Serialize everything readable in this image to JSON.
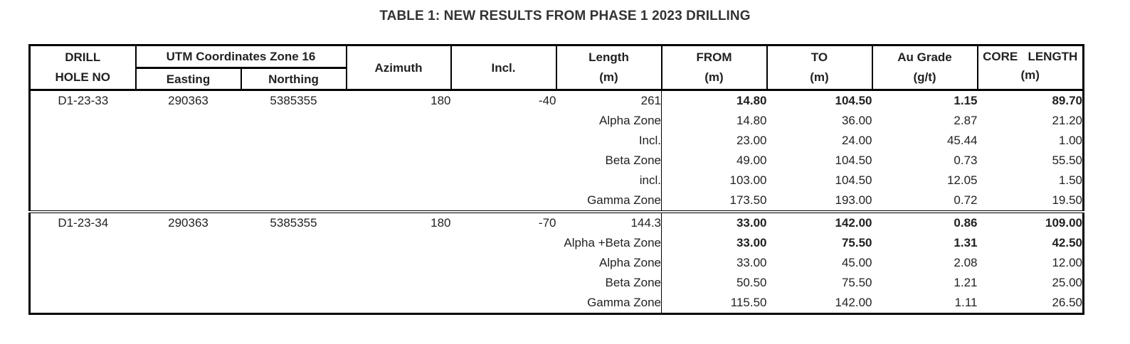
{
  "title": "TABLE 1: NEW RESULTS FROM PHASE 1 2023 DRILLING",
  "headers": {
    "drill_line1": "DRILL",
    "drill_line2": "HOLE NO",
    "utm_group": "UTM Coordinates Zone 16",
    "easting": "Easting",
    "northing": "Northing",
    "azimuth": "Azimuth",
    "incl": "Incl.",
    "length_line1": "Length",
    "length_line2": "(m)",
    "from_line1": "FROM",
    "from_line2": "(m)",
    "to_line1": "TO",
    "to_line2": "(m)",
    "au_line1": "Au Grade",
    "au_line2": "(g/t)",
    "core_line1": "CORE   LENGTH",
    "core_line2": "(m)"
  },
  "holes": [
    {
      "hole_no": "D1-23-33",
      "easting": "290363",
      "northing": "5385355",
      "azimuth": "180",
      "incl": "-40",
      "length": "261",
      "rows": [
        {
          "label": "",
          "from": "14.80",
          "to": "104.50",
          "au": "1.15",
          "core": "89.70",
          "bold": true
        },
        {
          "label": "Alpha Zone",
          "from": "14.80",
          "to": "36.00",
          "au": "2.87",
          "core": "21.20",
          "bold": false
        },
        {
          "label": "Incl.",
          "from": "23.00",
          "to": "24.00",
          "au": "45.44",
          "core": "1.00",
          "bold": false
        },
        {
          "label": "Beta Zone",
          "from": "49.00",
          "to": "104.50",
          "au": "0.73",
          "core": "55.50",
          "bold": false
        },
        {
          "label": "incl.",
          "from": "103.00",
          "to": "104.50",
          "au": "12.05",
          "core": "1.50",
          "bold": false
        },
        {
          "label": "Gamma Zone",
          "from": "173.50",
          "to": "193.00",
          "au": "0.72",
          "core": "19.50",
          "bold": false
        }
      ]
    },
    {
      "hole_no": "D1-23-34",
      "easting": "290363",
      "northing": "5385355",
      "azimuth": "180",
      "incl": "-70",
      "length": "144.3",
      "rows": [
        {
          "label": "",
          "from": "33.00",
          "to": "142.00",
          "au": "0.86",
          "core": "109.00",
          "bold": true
        },
        {
          "label": "Alpha +Beta Zone",
          "from": "33.00",
          "to": "75.50",
          "au": "1.31",
          "core": "42.50",
          "bold": true
        },
        {
          "label": "Alpha Zone",
          "from": "33.00",
          "to": "45.00",
          "au": "2.08",
          "core": "12.00",
          "bold": false
        },
        {
          "label": "Beta Zone",
          "from": "50.50",
          "to": "75.50",
          "au": "1.21",
          "core": "25.00",
          "bold": false
        },
        {
          "label": "Gamma Zone",
          "from": "115.50",
          "to": "142.00",
          "au": "1.11",
          "core": "26.50",
          "bold": false
        }
      ]
    }
  ]
}
